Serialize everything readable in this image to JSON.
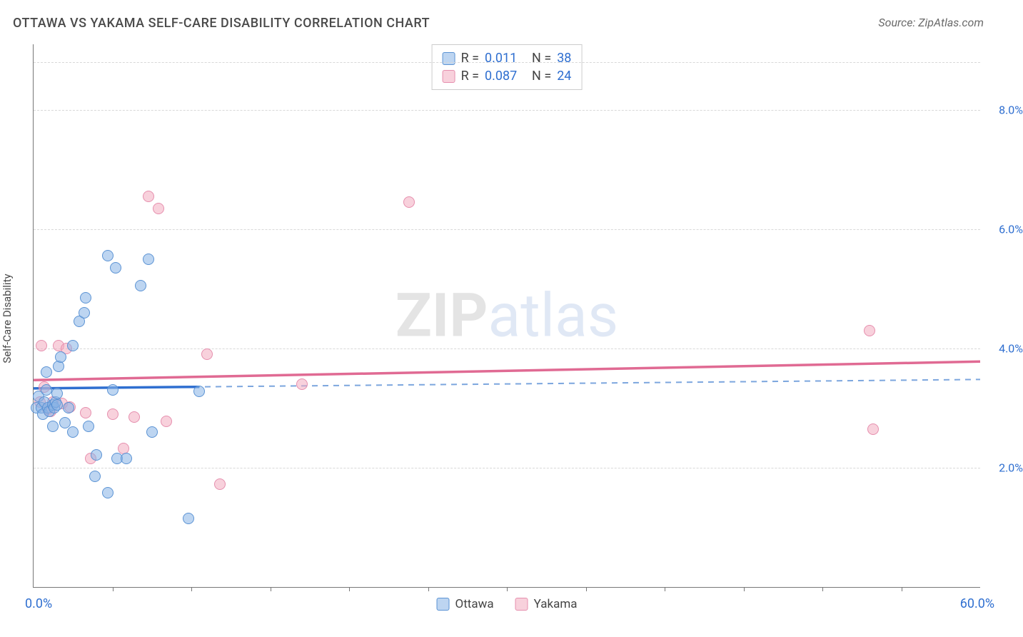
{
  "title": "OTTAWA VS YAKAMA SELF-CARE DISABILITY CORRELATION CHART",
  "source": "Source: ZipAtlas.com",
  "watermark": {
    "zip": "ZIP",
    "atlas": "atlas"
  },
  "ylabel": "Self-Care Disability",
  "colors": {
    "blue_number": "#2f6fd0",
    "dark_text": "#4a4a4a",
    "grid": "#d8d8d8",
    "background": "#ffffff"
  },
  "xlim": [
    0,
    60
  ],
  "ylim": [
    0,
    9.1
  ],
  "x_tick_step": 5,
  "x_start_label": "0.0%",
  "x_end_label": "60.0%",
  "y_ticks": [
    2.0,
    4.0,
    6.0,
    8.0
  ],
  "y_tick_labels": [
    "2.0%",
    "4.0%",
    "6.0%",
    "8.0%"
  ],
  "legend_top": [
    {
      "series": "ottawa",
      "r_label": "R =",
      "r": "0.011",
      "n_label": "N =",
      "n": "38"
    },
    {
      "series": "yakama",
      "r_label": "R =",
      "r": "0.087",
      "n_label": "N =",
      "n": "24"
    }
  ],
  "legend_bottom": [
    {
      "series": "ottawa",
      "label": "Ottawa"
    },
    {
      "series": "yakama",
      "label": "Yakama"
    }
  ],
  "series": {
    "ottawa": {
      "label": "Ottawa",
      "fill": "rgba(134,178,230,0.55)",
      "stroke": "#5b93d4",
      "marker_radius": 8,
      "marker_stroke_width": 1.5,
      "line_solid_color": "#2f6fd0",
      "line_solid_width": 3.5,
      "line_dash_color": "#7ca6de",
      "line_dash_width": 2,
      "line_dash": "8 7",
      "trend": {
        "x1": 0,
        "y1": 3.33,
        "x2": 60,
        "y2": 3.48
      },
      "solid_extent": 10.5,
      "points": [
        [
          0.2,
          3.0
        ],
        [
          0.3,
          3.2
        ],
        [
          0.5,
          3.0
        ],
        [
          0.6,
          2.9
        ],
        [
          0.7,
          3.1
        ],
        [
          0.8,
          3.3
        ],
        [
          0.9,
          3.0
        ],
        [
          1.0,
          2.95
        ],
        [
          1.2,
          3.05
        ],
        [
          1.3,
          3.0
        ],
        [
          1.4,
          3.1
        ],
        [
          1.5,
          3.25
        ],
        [
          0.8,
          3.6
        ],
        [
          1.6,
          3.7
        ],
        [
          1.7,
          3.85
        ],
        [
          1.5,
          3.05
        ],
        [
          2.2,
          3.0
        ],
        [
          1.2,
          2.7
        ],
        [
          2.0,
          2.75
        ],
        [
          2.5,
          2.6
        ],
        [
          3.5,
          2.7
        ],
        [
          5.0,
          3.3
        ],
        [
          2.5,
          4.05
        ],
        [
          2.9,
          4.45
        ],
        [
          3.2,
          4.6
        ],
        [
          3.3,
          4.85
        ],
        [
          5.2,
          5.35
        ],
        [
          4.7,
          5.55
        ],
        [
          7.3,
          5.5
        ],
        [
          4.0,
          2.22
        ],
        [
          5.3,
          2.15
        ],
        [
          5.9,
          2.15
        ],
        [
          7.5,
          2.6
        ],
        [
          3.9,
          1.85
        ],
        [
          4.7,
          1.58
        ],
        [
          9.8,
          1.15
        ],
        [
          6.8,
          5.05
        ],
        [
          10.5,
          3.28
        ]
      ]
    },
    "yakama": {
      "label": "Yakama",
      "fill": "rgba(242,172,192,0.55)",
      "stroke": "#e68fae",
      "marker_radius": 8,
      "marker_stroke_width": 1.5,
      "line_solid_color": "#e06a93",
      "line_solid_width": 3.5,
      "line_dash_color": "#e68fae",
      "line_dash_width": 2,
      "line_dash": "8 7",
      "trend": {
        "x1": 0,
        "y1": 3.47,
        "x2": 60,
        "y2": 3.78
      },
      "solid_extent": 60,
      "points": [
        [
          0.5,
          4.05
        ],
        [
          1.6,
          4.05
        ],
        [
          2.1,
          4.0
        ],
        [
          0.4,
          3.1
        ],
        [
          0.9,
          2.98
        ],
        [
          1.2,
          3.1
        ],
        [
          1.8,
          3.08
        ],
        [
          2.3,
          3.02
        ],
        [
          6.4,
          2.85
        ],
        [
          3.3,
          2.92
        ],
        [
          5.0,
          2.9
        ],
        [
          8.4,
          2.78
        ],
        [
          11.0,
          3.9
        ],
        [
          7.9,
          6.35
        ],
        [
          7.3,
          6.55
        ],
        [
          17.0,
          3.4
        ],
        [
          23.8,
          6.45
        ],
        [
          5.7,
          2.32
        ],
        [
          3.6,
          2.15
        ],
        [
          11.8,
          1.72
        ],
        [
          53.0,
          4.3
        ],
        [
          53.2,
          2.65
        ],
        [
          0.7,
          3.35
        ],
        [
          1.1,
          2.95
        ]
      ]
    }
  }
}
